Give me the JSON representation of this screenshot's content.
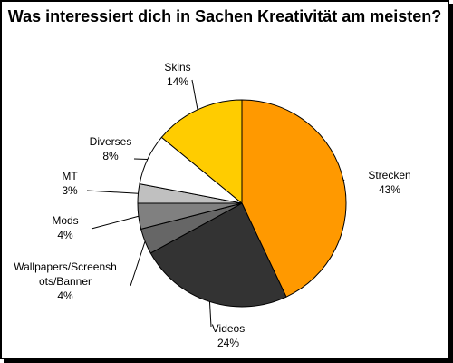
{
  "chart_data": {
    "type": "pie",
    "title": "Was interessiert dich in Sachen Kreativität am meisten?",
    "start_angle_deg": 0,
    "direction": "clockwise",
    "slices": [
      {
        "label": "Strecken",
        "value": 43,
        "display": "43%",
        "color": "#FF9900"
      },
      {
        "label": "Videos",
        "value": 24,
        "display": "24%",
        "color": "#333333"
      },
      {
        "label": "Wallpapers/Screenshots/Banner",
        "label_lines": [
          "Wallpapers/Screensh",
          "ots/Banner"
        ],
        "value": 4,
        "display": "4%",
        "color": "#666666"
      },
      {
        "label": "Mods",
        "value": 4,
        "display": "4%",
        "color": "#808080"
      },
      {
        "label": "MT",
        "value": 3,
        "display": "3%",
        "color": "#C0C0C0"
      },
      {
        "label": "Diverses",
        "value": 8,
        "display": "8%",
        "color": "#FFFFFF"
      },
      {
        "label": "Skins",
        "value": 14,
        "display": "14%",
        "color": "#FFCC00"
      }
    ]
  }
}
